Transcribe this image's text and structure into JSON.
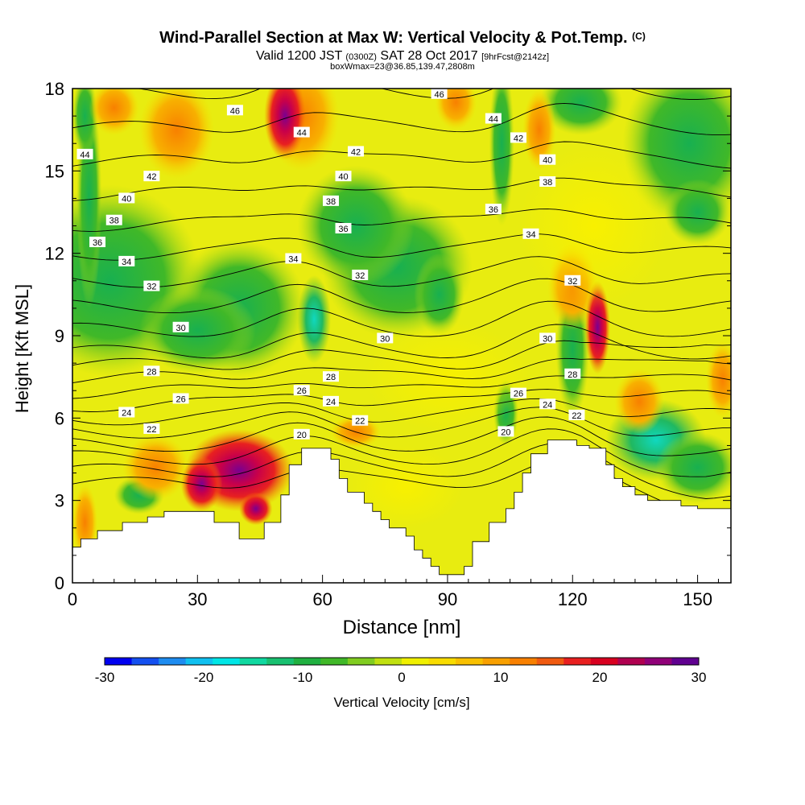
{
  "title": "Wind-Parallel Section at Max W: Vertical Velocity & Pot.Temp.",
  "copyright": "(C)",
  "subtitle_main": "Valid 1200 JST",
  "subtitle_utc": "(0300Z)",
  "subtitle_date": "SAT 28 Oct 2017",
  "subtitle_fcst": "[9hrFcst@2142z]",
  "subtitle_box": "boxWmax=23@36.85,139.47,2808m",
  "chart_data": {
    "type": "heatmap",
    "xlabel": "Distance [nm]",
    "ylabel": "Height [Kft MSL]",
    "xlim": [
      0,
      158
    ],
    "ylim": [
      0,
      18
    ],
    "xticks": [
      0,
      30,
      60,
      90,
      120,
      150
    ],
    "yticks": [
      0,
      3,
      6,
      9,
      12,
      15,
      18
    ],
    "colorbar": {
      "label": "Vertical Velocity [cm/s]",
      "ticks": [
        -30,
        -20,
        -10,
        0,
        10,
        20,
        30
      ],
      "colors": [
        "#0000f0",
        "#1450f0",
        "#1e8cf0",
        "#10c0f0",
        "#00e6e6",
        "#10d8a0",
        "#18c070",
        "#20b040",
        "#40b828",
        "#80cc20",
        "#c0e010",
        "#f0f000",
        "#f8dc00",
        "#f8c000",
        "#f8a000",
        "#f88000",
        "#f05a10",
        "#e82020",
        "#d80020",
        "#b00050",
        "#900078",
        "#600090"
      ]
    },
    "terrain": [
      [
        0,
        1.3
      ],
      [
        2,
        1.3
      ],
      [
        2,
        1.6
      ],
      [
        6,
        1.6
      ],
      [
        6,
        1.9
      ],
      [
        12,
        1.9
      ],
      [
        12,
        2.2
      ],
      [
        18,
        2.2
      ],
      [
        18,
        2.4
      ],
      [
        22,
        2.4
      ],
      [
        22,
        2.6
      ],
      [
        34,
        2.6
      ],
      [
        34,
        2.2
      ],
      [
        40,
        2.2
      ],
      [
        40,
        1.6
      ],
      [
        46,
        1.6
      ],
      [
        46,
        2.2
      ],
      [
        50,
        2.2
      ],
      [
        50,
        3.2
      ],
      [
        52,
        3.2
      ],
      [
        52,
        4.3
      ],
      [
        55,
        4.3
      ],
      [
        55,
        4.9
      ],
      [
        62,
        4.9
      ],
      [
        62,
        4.5
      ],
      [
        64,
        4.5
      ],
      [
        64,
        3.8
      ],
      [
        66,
        3.8
      ],
      [
        66,
        3.3
      ],
      [
        70,
        3.3
      ],
      [
        70,
        2.9
      ],
      [
        72,
        2.9
      ],
      [
        72,
        2.6
      ],
      [
        74,
        2.6
      ],
      [
        74,
        2.3
      ],
      [
        76,
        2.3
      ],
      [
        76,
        2.0
      ],
      [
        80,
        2.0
      ],
      [
        80,
        1.7
      ],
      [
        82,
        1.7
      ],
      [
        82,
        1.2
      ],
      [
        84,
        1.2
      ],
      [
        84,
        0.9
      ],
      [
        86,
        0.9
      ],
      [
        86,
        0.6
      ],
      [
        88,
        0.6
      ],
      [
        88,
        0.3
      ],
      [
        94,
        0.3
      ],
      [
        94,
        0.6
      ],
      [
        96,
        0.6
      ],
      [
        96,
        1.5
      ],
      [
        100,
        1.5
      ],
      [
        100,
        2.2
      ],
      [
        104,
        2.2
      ],
      [
        104,
        2.7
      ],
      [
        106,
        2.7
      ],
      [
        106,
        3.3
      ],
      [
        108,
        3.3
      ],
      [
        108,
        4.0
      ],
      [
        110,
        4.0
      ],
      [
        110,
        4.7
      ],
      [
        114,
        4.7
      ],
      [
        114,
        5.2
      ],
      [
        121,
        5.2
      ],
      [
        121,
        5.0
      ],
      [
        124,
        5.0
      ],
      [
        124,
        4.9
      ],
      [
        128,
        4.9
      ],
      [
        128,
        4.3
      ],
      [
        130,
        4.3
      ],
      [
        130,
        3.8
      ],
      [
        132,
        3.8
      ],
      [
        132,
        3.5
      ],
      [
        135,
        3.5
      ],
      [
        135,
        3.2
      ],
      [
        138,
        3.2
      ],
      [
        138,
        3.0
      ],
      [
        146,
        3.0
      ],
      [
        146,
        2.8
      ],
      [
        150,
        2.8
      ],
      [
        150,
        2.7
      ],
      [
        158,
        2.7
      ]
    ],
    "contour_labels": [
      {
        "text": "44",
        "x": 3,
        "y": 15.6
      },
      {
        "text": "46",
        "x": 39,
        "y": 17.2
      },
      {
        "text": "44",
        "x": 55,
        "y": 16.4
      },
      {
        "text": "42",
        "x": 68,
        "y": 15.7
      },
      {
        "text": "40",
        "x": 65,
        "y": 14.8
      },
      {
        "text": "38",
        "x": 62,
        "y": 13.9
      },
      {
        "text": "36",
        "x": 65,
        "y": 12.9
      },
      {
        "text": "46",
        "x": 88,
        "y": 17.8
      },
      {
        "text": "44",
        "x": 101,
        "y": 16.9
      },
      {
        "text": "42",
        "x": 107,
        "y": 16.2
      },
      {
        "text": "40",
        "x": 114,
        "y": 15.4
      },
      {
        "text": "38",
        "x": 114,
        "y": 14.6
      },
      {
        "text": "36",
        "x": 101,
        "y": 13.6
      },
      {
        "text": "34",
        "x": 110,
        "y": 12.7
      },
      {
        "text": "42",
        "x": 19,
        "y": 14.8
      },
      {
        "text": "40",
        "x": 13,
        "y": 14.0
      },
      {
        "text": "38",
        "x": 10,
        "y": 13.2
      },
      {
        "text": "36",
        "x": 6,
        "y": 12.4
      },
      {
        "text": "34",
        "x": 13,
        "y": 11.7
      },
      {
        "text": "34",
        "x": 53,
        "y": 11.8
      },
      {
        "text": "32",
        "x": 19,
        "y": 10.8
      },
      {
        "text": "32",
        "x": 69,
        "y": 11.2
      },
      {
        "text": "32",
        "x": 120,
        "y": 11.0
      },
      {
        "text": "30",
        "x": 26,
        "y": 9.3
      },
      {
        "text": "30",
        "x": 75,
        "y": 8.9
      },
      {
        "text": "30",
        "x": 114,
        "y": 8.9
      },
      {
        "text": "28",
        "x": 19,
        "y": 7.7
      },
      {
        "text": "28",
        "x": 62,
        "y": 7.5
      },
      {
        "text": "28",
        "x": 120,
        "y": 7.6
      },
      {
        "text": "26",
        "x": 26,
        "y": 6.7
      },
      {
        "text": "26",
        "x": 55,
        "y": 7.0
      },
      {
        "text": "26",
        "x": 107,
        "y": 6.9
      },
      {
        "text": "24",
        "x": 13,
        "y": 6.2
      },
      {
        "text": "24",
        "x": 62,
        "y": 6.6
      },
      {
        "text": "24",
        "x": 114,
        "y": 6.5
      },
      {
        "text": "22",
        "x": 19,
        "y": 5.6
      },
      {
        "text": "22",
        "x": 69,
        "y": 5.9
      },
      {
        "text": "22",
        "x": 121,
        "y": 6.1
      },
      {
        "text": "20",
        "x": 55,
        "y": 5.4
      },
      {
        "text": "20",
        "x": 104,
        "y": 5.5
      }
    ],
    "contour_levels": [
      20,
      21,
      22,
      23,
      24,
      25,
      26,
      27,
      28,
      29,
      30,
      31,
      32,
      33,
      34,
      35,
      36,
      37,
      38,
      39,
      40,
      41,
      42,
      43,
      44,
      45,
      46,
      47
    ]
  }
}
